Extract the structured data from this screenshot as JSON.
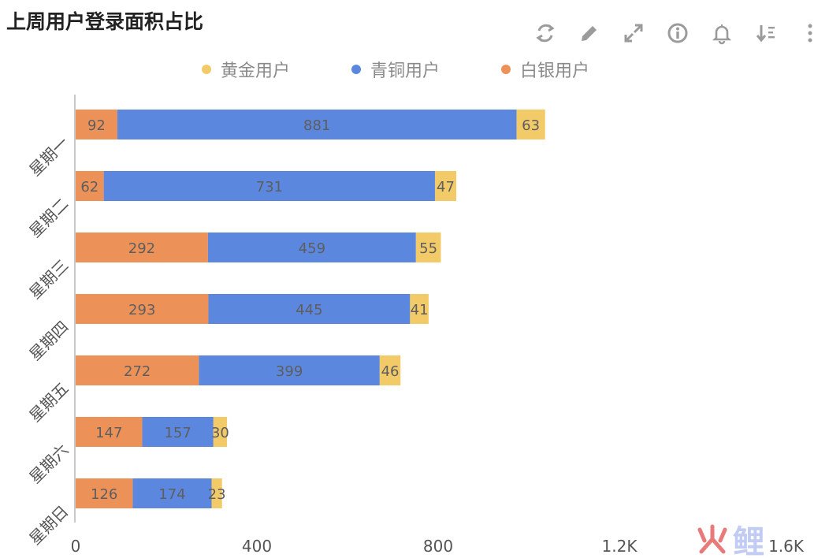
{
  "header": {
    "title": "上周用户登录面积占比"
  },
  "toolbar": {
    "items": [
      {
        "icon": "refresh-icon"
      },
      {
        "icon": "edit-icon"
      },
      {
        "icon": "expand-icon"
      },
      {
        "icon": "info-icon"
      },
      {
        "icon": "bell-icon"
      },
      {
        "icon": "sort-descending-icon"
      },
      {
        "icon": "more-vertical-icon"
      }
    ]
  },
  "colors": {
    "gold": "#f2ca67",
    "bronze": "#5b87df",
    "silver": "#ec9258",
    "axis": "#c8c8c8",
    "tool": "#9b9b9b"
  },
  "watermark": {
    "text": "鲤"
  },
  "chart_data": {
    "type": "bar",
    "orientation": "horizontal",
    "stacked": true,
    "title": "上周用户登录面积占比",
    "categories": [
      "星期一",
      "星期二",
      "星期三",
      "星期四",
      "星期五",
      "星期六",
      "星期日"
    ],
    "series": [
      {
        "name": "白银用户",
        "color": "#ec9258",
        "values": [
          92,
          62,
          292,
          293,
          272,
          147,
          126
        ]
      },
      {
        "name": "青铜用户",
        "color": "#5b87df",
        "values": [
          881,
          731,
          459,
          445,
          399,
          157,
          174
        ]
      },
      {
        "name": "黄金用户",
        "color": "#f2ca67",
        "values": [
          63,
          47,
          55,
          41,
          46,
          30,
          23
        ]
      }
    ],
    "legend": {
      "position": "top",
      "order": [
        "黄金用户",
        "青铜用户",
        "白银用户"
      ]
    },
    "xlim": [
      0,
      1600
    ],
    "xticks": [
      0,
      400,
      800,
      1200,
      1600
    ],
    "xtick_labels": [
      "0",
      "400",
      "800",
      "1.2K",
      "1.6K"
    ],
    "grid": false
  }
}
